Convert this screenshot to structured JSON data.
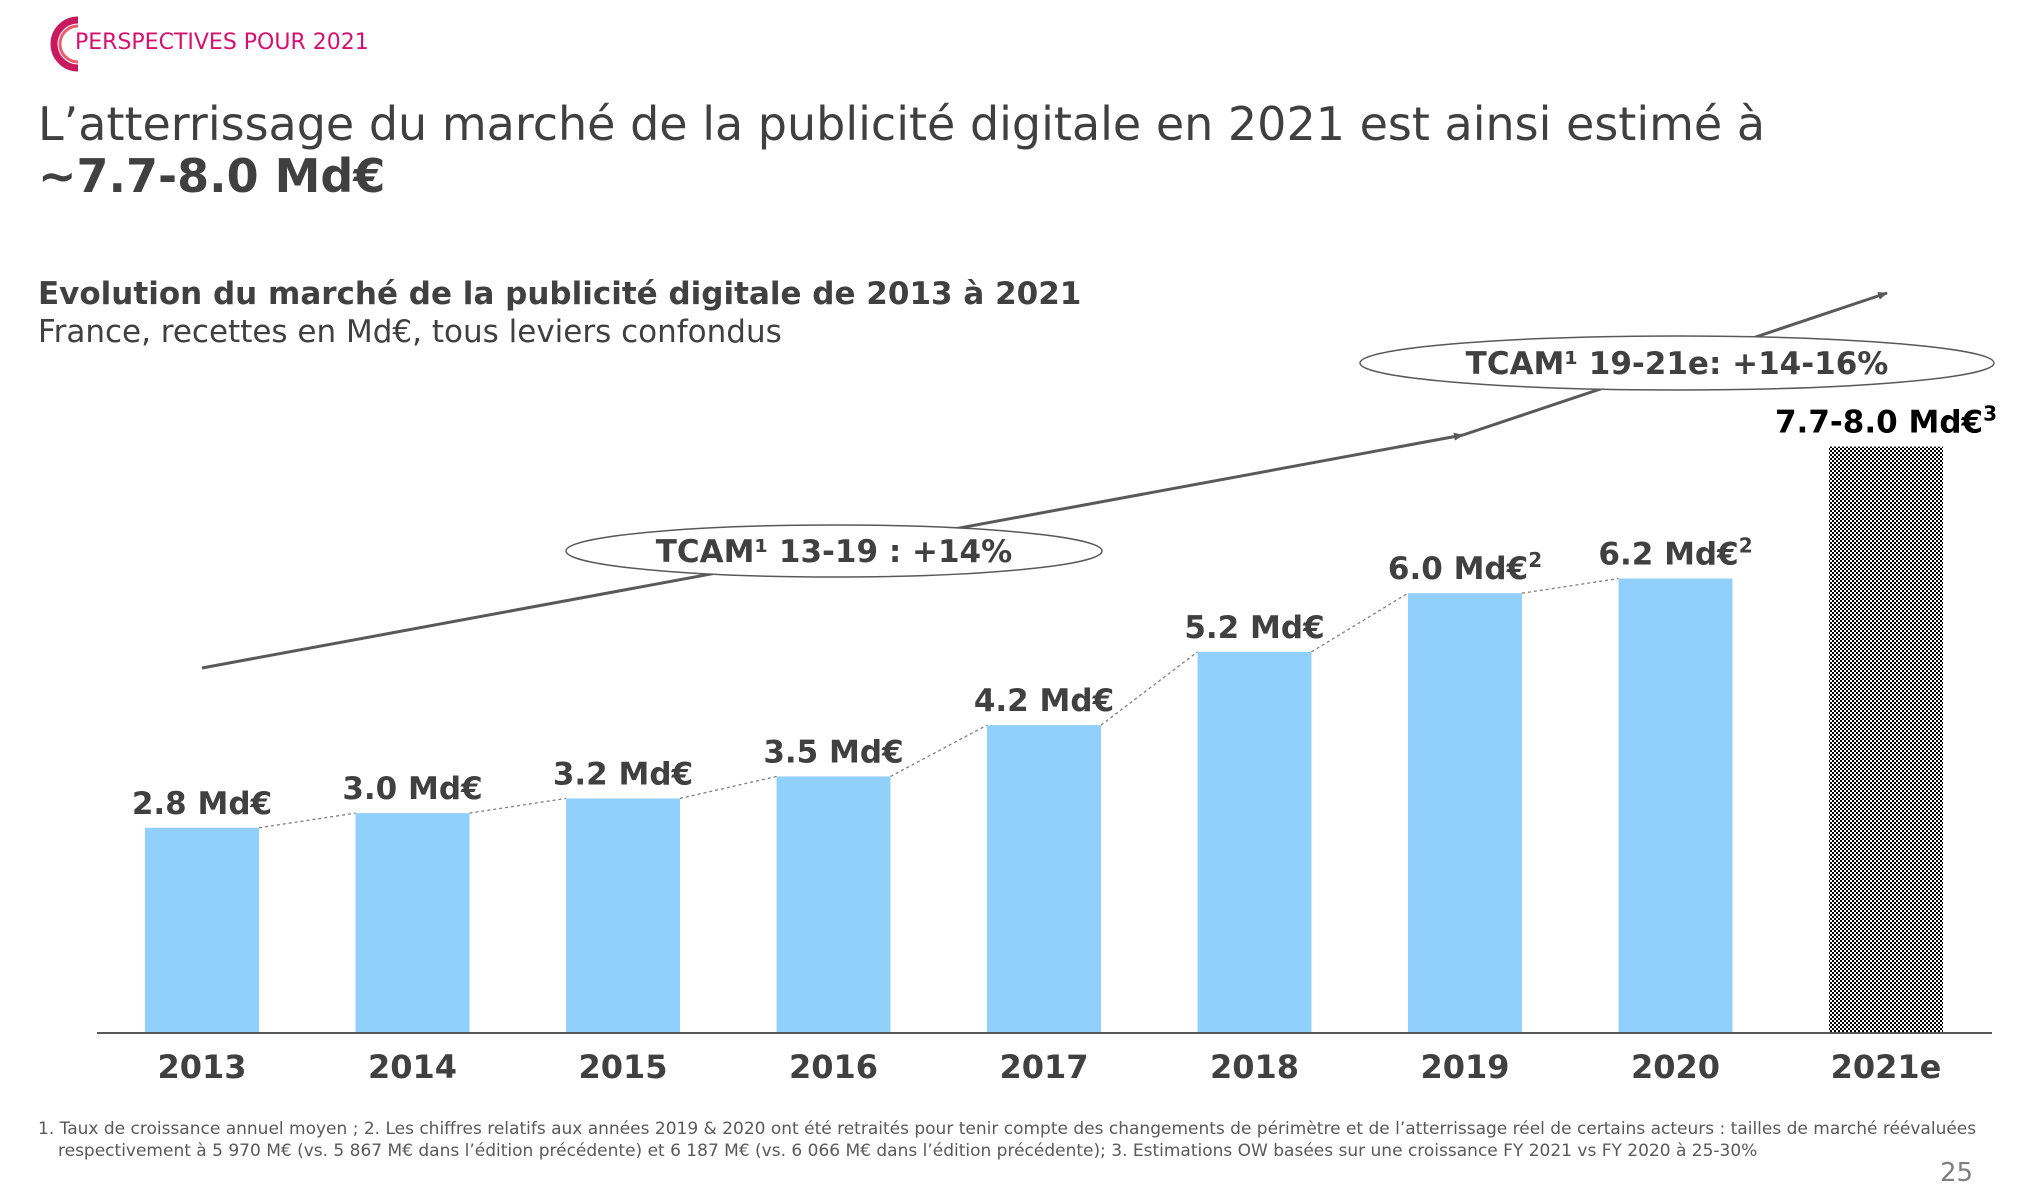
{
  "header": {
    "section": "PERSPECTIVES POUR 2021",
    "title_line1": "L’atterrissage du marché de la publicité digitale en 2021 est ainsi estimé à",
    "title_line2": "~7.7-8.0 Md€",
    "brand_color": "#d6106e"
  },
  "chart_data": {
    "type": "bar",
    "title": "Evolution du marché de la publicité digitale de 2013 à 2021",
    "subtitle": "France, recettes en Md€, tous leviers confondus",
    "categories": [
      "2013",
      "2014",
      "2015",
      "2016",
      "2017",
      "2018",
      "2019",
      "2020",
      "2021e"
    ],
    "values": [
      2.8,
      3.0,
      3.2,
      3.5,
      4.2,
      5.2,
      6.0,
      6.2,
      [
        7.7,
        8.0
      ]
    ],
    "labels": [
      {
        "text": "2.8 Md€",
        "sup": ""
      },
      {
        "text": "3.0 Md€",
        "sup": ""
      },
      {
        "text": "3.2 Md€",
        "sup": ""
      },
      {
        "text": "3.5 Md€",
        "sup": ""
      },
      {
        "text": "4.2 Md€",
        "sup": ""
      },
      {
        "text": "5.2 Md€",
        "sup": ""
      },
      {
        "text": "6.0 Md€",
        "sup": "2"
      },
      {
        "text": "6.2 Md€",
        "sup": "2"
      },
      {
        "text": "7.7-8.0 Md€",
        "sup": "3"
      }
    ],
    "unit": "Md€",
    "bar_color": "#91d0fc",
    "estimate_bar_pattern": "black-white checkerboard",
    "ylim": [
      0,
      8.0
    ],
    "grid": false,
    "annotations": [
      {
        "text": "TCAM¹ 13-19 : +14%",
        "from": "2013",
        "to": "2019"
      },
      {
        "text": "TCAM¹ 19-21e: +14-16%",
        "from": "2019",
        "to": "2021e"
      }
    ]
  },
  "footnotes": {
    "line1": "1. Taux de croissance annuel moyen ; 2. Les chiffres relatifs aux années 2019 & 2020 ont été retraités pour tenir compte des changements de périmètre et de l’atterrissage réel de certains acteurs : tailles de marché réévaluées",
    "line2": "respectivement à 5 970 M€ (vs. 5 867 M€ dans l’édition précédente) et 6 187 M€ (vs. 6 066 M€ dans l’édition précédente); 3. Estimations OW basées sur une croissance FY 2021 vs FY 2020 à 25-30%"
  },
  "page_number": "25"
}
